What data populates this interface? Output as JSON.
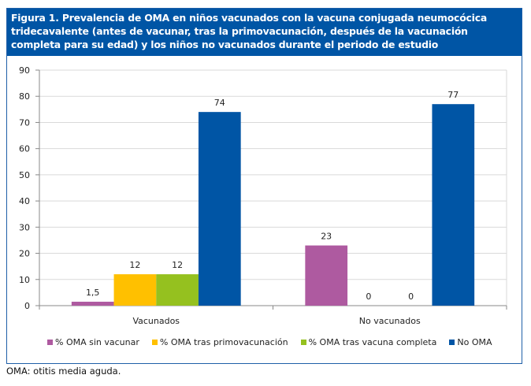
{
  "figure": {
    "title": "Figura 1. Prevalencia de OMA en niños vacunados con la vacuna conjugada neumocócica tridecavalente (antes de vacunar, tras la primovacunación, después de la vacunación completa para su edad) y los niños no vacunados durante el periodo de estudio",
    "footnote": "OMA: otitis media aguda."
  },
  "chart_data": {
    "type": "bar",
    "title": "Figura 1. Prevalencia de OMA en niños vacunados con la vacuna conjugada neumocócica tridecavalente (antes de vacunar, tras la primovacunación, después de la vacunación completa para su edad) y los niños no vacunados durante el periodo de estudio",
    "xlabel": "",
    "ylabel": "",
    "categories": [
      "Vacunados",
      "No vacunados"
    ],
    "ylim": [
      0,
      90
    ],
    "yticks": [
      0,
      10,
      20,
      30,
      40,
      50,
      60,
      70,
      80,
      90
    ],
    "grid": true,
    "legend_position": "bottom",
    "series": [
      {
        "name": "% OMA sin vacunar",
        "color": "#ae5aa0",
        "values": [
          1.5,
          23
        ],
        "labels": [
          "1,5",
          "23"
        ]
      },
      {
        "name": "% OMA tras primovacunación",
        "color": "#ffc000",
        "values": [
          12,
          0
        ],
        "labels": [
          "12",
          "0"
        ]
      },
      {
        "name": "% OMA tras vacuna completa",
        "color": "#95c11f",
        "values": [
          12,
          0
        ],
        "labels": [
          "12",
          "0"
        ]
      },
      {
        "name": "No OMA",
        "color": "#0055a5",
        "values": [
          74,
          77
        ],
        "labels": [
          "74",
          "77"
        ]
      }
    ]
  }
}
